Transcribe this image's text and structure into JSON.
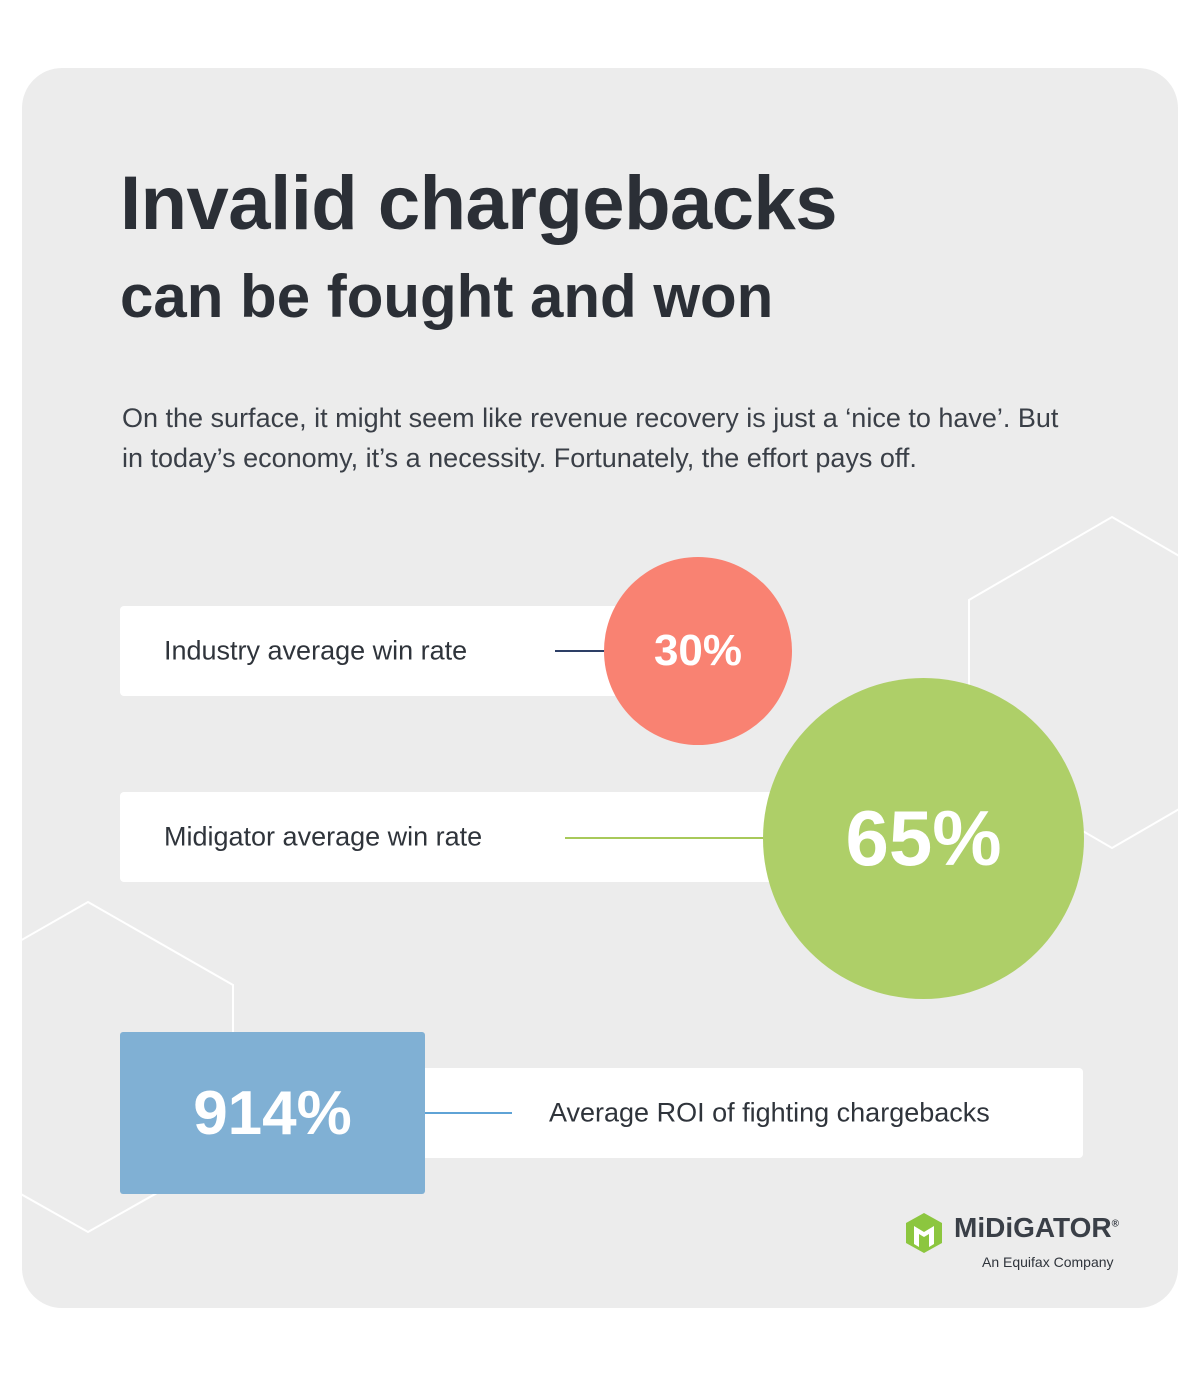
{
  "header": {
    "title_line1": "Invalid chargebacks",
    "title_line2": "can be fought and won"
  },
  "intro": "On the surface, it might seem like revenue recovery is just a ‘nice to have’. But in today’s economy, it’s a necessity. Fortunately, the effort pays off.",
  "stats": [
    {
      "label": "Industry average win rate",
      "value": "30%"
    },
    {
      "label": "Midigator average win rate",
      "value": "65%"
    },
    {
      "label": "Average ROI of fighting chargebacks",
      "value": "914%"
    }
  ],
  "logo": {
    "name": "MiDiGATOR",
    "mark": "®",
    "tagline": "An Equifax Company"
  }
}
